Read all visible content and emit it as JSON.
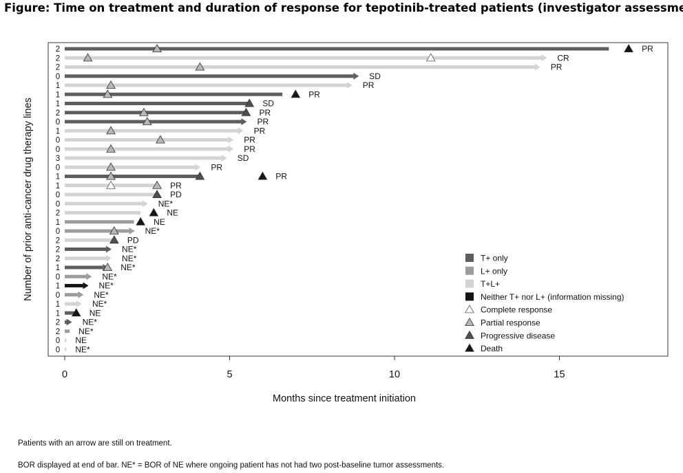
{
  "figure_title": "Figure: Time on treatment and duration of response for tepotinib-treated patients (investigator assessment)",
  "footnotes": [
    "Patients with an arrow are still on treatment.",
    "BOR displayed at end of bar. NE* = BOR of NE where ongoing patient has not had two post-baseline tumor assessments."
  ],
  "colors": {
    "T+ only": "#5e5e5e",
    "L+ only": "#9c9c9c",
    "T+L+": "#d3d3d3",
    "Neither T+ nor L+ (information missing)": "#151515",
    "Complete response": "#ffffff",
    "Partial response": "#b7b7b7",
    "Progressive disease": "#4f4f4f",
    "Death": "#151515"
  },
  "chart_data": {
    "type": "bar",
    "orientation": "horizontal swimmer",
    "xlabel": "Months since treatment initiation",
    "ylabel": "Number of prior anti-cancer drug therapy lines",
    "xlim": [
      0,
      18
    ],
    "xticks": [
      0,
      5,
      10,
      15
    ],
    "grid": false,
    "legend_position": "bottom-right",
    "legend": [
      {
        "label": "T+ only",
        "symbol": "square",
        "color": "#5e5e5e"
      },
      {
        "label": "L+ only",
        "symbol": "square",
        "color": "#9c9c9c"
      },
      {
        "label": "T+L+",
        "symbol": "square",
        "color": "#d3d3d3"
      },
      {
        "label": "Neither T+ nor L+ (information missing)",
        "symbol": "square",
        "color": "#151515"
      },
      {
        "label": "Complete response",
        "symbol": "triangle",
        "color": "#ffffff"
      },
      {
        "label": "Partial response",
        "symbol": "triangle",
        "color": "#b7b7b7"
      },
      {
        "label": "Progressive disease",
        "symbol": "triangle",
        "color": "#4f4f4f"
      },
      {
        "label": "Death",
        "symbol": "triangle",
        "color": "#151515"
      }
    ],
    "patients": [
      {
        "prior_lines": "2",
        "group": "T+ only",
        "duration": 16.5,
        "ongoing": false,
        "bor": "PR",
        "markers": [
          {
            "type": "Partial response",
            "x": 2.8
          },
          {
            "type": "Death",
            "x": 17.1
          }
        ]
      },
      {
        "prior_lines": "2",
        "group": "T+L+",
        "duration": 14.6,
        "ongoing": true,
        "bor": "CR",
        "markers": [
          {
            "type": "Partial response",
            "x": 0.7
          },
          {
            "type": "Complete response",
            "x": 11.1
          }
        ]
      },
      {
        "prior_lines": "2",
        "group": "T+L+",
        "duration": 14.4,
        "ongoing": true,
        "bor": "PR",
        "markers": [
          {
            "type": "Partial response",
            "x": 4.1
          }
        ]
      },
      {
        "prior_lines": "0",
        "group": "T+ only",
        "duration": 8.9,
        "ongoing": true,
        "bor": "SD",
        "markers": []
      },
      {
        "prior_lines": "1",
        "group": "T+L+",
        "duration": 8.7,
        "ongoing": true,
        "bor": "PR",
        "markers": [
          {
            "type": "Partial response",
            "x": 1.4
          }
        ]
      },
      {
        "prior_lines": "1",
        "group": "T+ only",
        "duration": 6.6,
        "ongoing": false,
        "bor": "PR",
        "markers": [
          {
            "type": "Partial response",
            "x": 1.3
          },
          {
            "type": "Death",
            "x": 7.0
          }
        ]
      },
      {
        "prior_lines": "1",
        "group": "T+ only",
        "duration": 5.6,
        "ongoing": false,
        "bor": "SD",
        "markers": [
          {
            "type": "Progressive disease",
            "x": 5.6
          }
        ]
      },
      {
        "prior_lines": "2",
        "group": "T+ only",
        "duration": 5.5,
        "ongoing": false,
        "bor": "PR",
        "markers": [
          {
            "type": "Partial response",
            "x": 2.4
          },
          {
            "type": "Progressive disease",
            "x": 5.5
          }
        ]
      },
      {
        "prior_lines": "0",
        "group": "T+ only",
        "duration": 5.5,
        "ongoing": true,
        "bor": "PR",
        "markers": [
          {
            "type": "Partial response",
            "x": 2.5
          }
        ]
      },
      {
        "prior_lines": "1",
        "group": "T+L+",
        "duration": 5.4,
        "ongoing": true,
        "bor": "PR",
        "markers": [
          {
            "type": "Partial response",
            "x": 1.4
          }
        ]
      },
      {
        "prior_lines": "0",
        "group": "T+L+",
        "duration": 5.1,
        "ongoing": true,
        "bor": "PR",
        "markers": [
          {
            "type": "Partial response",
            "x": 2.9
          }
        ]
      },
      {
        "prior_lines": "0",
        "group": "T+L+",
        "duration": 5.1,
        "ongoing": true,
        "bor": "PR",
        "markers": [
          {
            "type": "Partial response",
            "x": 1.4
          }
        ]
      },
      {
        "prior_lines": "3",
        "group": "T+L+",
        "duration": 4.9,
        "ongoing": true,
        "bor": "SD",
        "markers": []
      },
      {
        "prior_lines": "0",
        "group": "T+L+",
        "duration": 4.1,
        "ongoing": true,
        "bor": "PR",
        "markers": [
          {
            "type": "Partial response",
            "x": 1.4
          }
        ]
      },
      {
        "prior_lines": "1",
        "group": "T+ only",
        "duration": 4.1,
        "ongoing": false,
        "bor": "PR",
        "markers": [
          {
            "type": "Partial response",
            "x": 1.4
          },
          {
            "type": "Progressive disease",
            "x": 4.1
          },
          {
            "type": "Death",
            "x": 6.0
          }
        ]
      },
      {
        "prior_lines": "1",
        "group": "T+L+",
        "duration": 2.8,
        "ongoing": false,
        "bor": "PR",
        "markers": [
          {
            "type": "Complete response",
            "x": 1.4
          },
          {
            "type": "Partial response",
            "x": 2.8
          }
        ]
      },
      {
        "prior_lines": "0",
        "group": "T+L+",
        "duration": 2.8,
        "ongoing": false,
        "bor": "PD",
        "markers": [
          {
            "type": "Progressive disease",
            "x": 2.8
          }
        ]
      },
      {
        "prior_lines": "0",
        "group": "T+L+",
        "duration": 2.5,
        "ongoing": true,
        "bor": "NE*",
        "markers": []
      },
      {
        "prior_lines": "2",
        "group": "T+L+",
        "duration": 2.3,
        "ongoing": false,
        "bor": "NE",
        "markers": [
          {
            "type": "Death",
            "x": 2.7
          }
        ]
      },
      {
        "prior_lines": "1",
        "group": "L+ only",
        "duration": 2.1,
        "ongoing": false,
        "bor": "NE",
        "markers": [
          {
            "type": "Death",
            "x": 2.3
          }
        ]
      },
      {
        "prior_lines": "0",
        "group": "L+ only",
        "duration": 2.1,
        "ongoing": true,
        "bor": "NE*",
        "markers": [
          {
            "type": "Partial response",
            "x": 1.5
          }
        ]
      },
      {
        "prior_lines": "2",
        "group": "T+L+",
        "duration": 1.5,
        "ongoing": false,
        "bor": "PD",
        "markers": [
          {
            "type": "Progressive disease",
            "x": 1.5
          }
        ]
      },
      {
        "prior_lines": "2",
        "group": "T+ only",
        "duration": 1.4,
        "ongoing": true,
        "bor": "NE*",
        "markers": []
      },
      {
        "prior_lines": "2",
        "group": "T+L+",
        "duration": 1.4,
        "ongoing": true,
        "bor": "NE*",
        "markers": []
      },
      {
        "prior_lines": "1",
        "group": "T+ only",
        "duration": 1.3,
        "ongoing": true,
        "bor": "NE*",
        "markers": [
          {
            "type": "Partial response",
            "x": 1.3
          }
        ]
      },
      {
        "prior_lines": "0",
        "group": "L+ only",
        "duration": 0.8,
        "ongoing": true,
        "bor": "NE*",
        "markers": []
      },
      {
        "prior_lines": "1",
        "group": "Neither T+ nor L+ (information missing)",
        "duration": 0.7,
        "ongoing": true,
        "bor": "NE*",
        "markers": []
      },
      {
        "prior_lines": "0",
        "group": "L+ only",
        "duration": 0.55,
        "ongoing": true,
        "bor": "NE*",
        "markers": []
      },
      {
        "prior_lines": "1",
        "group": "T+L+",
        "duration": 0.5,
        "ongoing": true,
        "bor": "NE*",
        "markers": []
      },
      {
        "prior_lines": "1",
        "group": "T+ only",
        "duration": 0.3,
        "ongoing": false,
        "bor": "NE",
        "markers": [
          {
            "type": "Death",
            "x": 0.35
          }
        ]
      },
      {
        "prior_lines": "2",
        "group": "T+ only",
        "duration": 0.2,
        "ongoing": true,
        "bor": "NE*",
        "markers": []
      },
      {
        "prior_lines": "2",
        "group": "L+ only",
        "duration": 0.15,
        "ongoing": false,
        "bor": "NE*",
        "markers": []
      },
      {
        "prior_lines": "0",
        "group": "T+L+",
        "duration": 0.05,
        "ongoing": false,
        "bor": "NE",
        "markers": []
      },
      {
        "prior_lines": "0",
        "group": "T+L+",
        "duration": 0.05,
        "ongoing": false,
        "bor": "NE*",
        "markers": []
      }
    ]
  }
}
